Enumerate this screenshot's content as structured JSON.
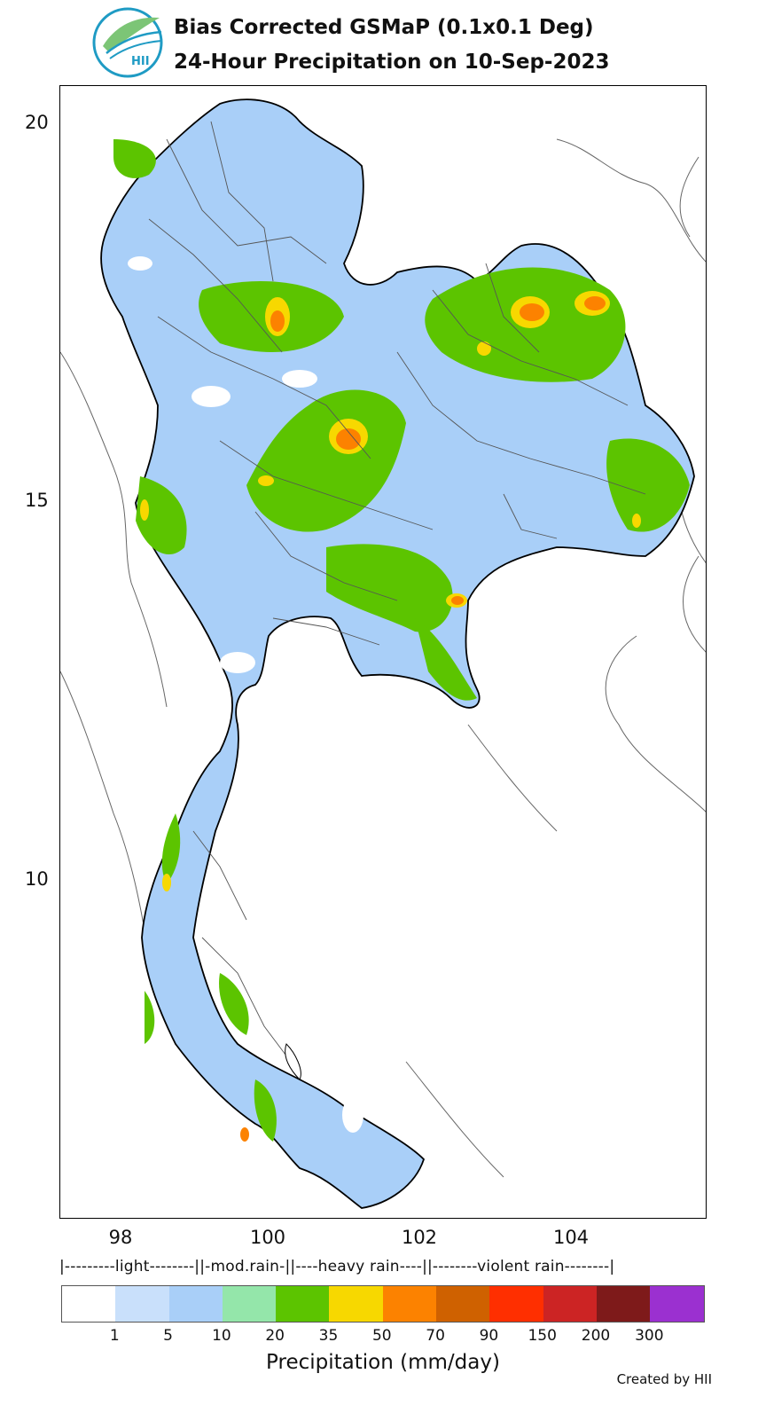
{
  "title": {
    "line1": "Bias Corrected GSMaP (0.1x0.1 Deg)",
    "line2": "24-Hour Precipitation on 10-Sep-2023"
  },
  "logo": {
    "text": "HII",
    "icon": "hii-logo"
  },
  "axes": {
    "y_ticks": [
      "20",
      "15",
      "10"
    ],
    "x_ticks": [
      "98",
      "100",
      "102",
      "104"
    ]
  },
  "legend": {
    "categories_text": "|---------light--------||-mod.rain-||----heavy rain----||--------violent rain--------|",
    "colors": [
      "#ffffff",
      "#c9e0fb",
      "#a9cff8",
      "#94e6aa",
      "#5cc400",
      "#f7d800",
      "#fc8200",
      "#cf6100",
      "#ff2f00",
      "#cc2424",
      "#7e1a1a",
      "#9b30d0"
    ],
    "ticks": [
      "1",
      "5",
      "10",
      "20",
      "35",
      "50",
      "70",
      "90",
      "150",
      "200",
      "300"
    ],
    "label": "Precipitation (mm/day)"
  },
  "credit": "Created by HII"
}
